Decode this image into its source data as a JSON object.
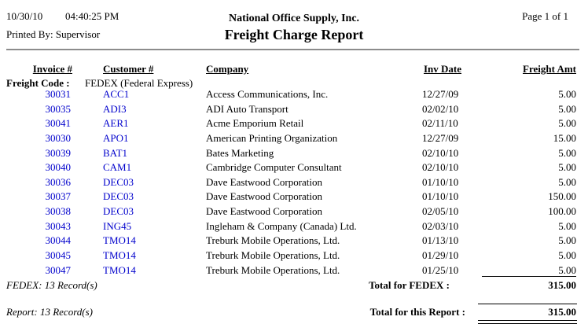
{
  "header": {
    "print_date": "10/30/10",
    "print_time": "04:40:25 PM",
    "printed_by": "Printed By: Supervisor",
    "company_name": "National Office Supply, Inc.",
    "report_title": "Freight Charge Report",
    "page_info": "Page 1 of 1"
  },
  "table": {
    "headers": {
      "invoice": "Invoice #",
      "customer": "Customer #",
      "company": "Company",
      "inv_date": "Inv Date",
      "freight_amt": "Freight Amt"
    },
    "group": {
      "label": "Freight Code :",
      "value": "FEDEX (Federal Express)"
    },
    "rows": [
      {
        "invoice": "30031",
        "customer": "ACC1",
        "company": "Access Communications, Inc.",
        "inv_date": "12/27/09",
        "freight_amt": "5.00"
      },
      {
        "invoice": "30035",
        "customer": "ADI3",
        "company": "ADI Auto Transport",
        "inv_date": "02/02/10",
        "freight_amt": "5.00"
      },
      {
        "invoice": "30041",
        "customer": "AER1",
        "company": "Acme Emporium Retail",
        "inv_date": "02/11/10",
        "freight_amt": "5.00"
      },
      {
        "invoice": "30030",
        "customer": "APO1",
        "company": "American Printing Organization",
        "inv_date": "12/27/09",
        "freight_amt": "15.00"
      },
      {
        "invoice": "30039",
        "customer": "BAT1",
        "company": "Bates Marketing",
        "inv_date": "02/10/10",
        "freight_amt": "5.00"
      },
      {
        "invoice": "30040",
        "customer": "CAM1",
        "company": "Cambridge Computer Consultant",
        "inv_date": "02/10/10",
        "freight_amt": "5.00"
      },
      {
        "invoice": "30036",
        "customer": "DEC03",
        "company": "Dave Eastwood Corporation",
        "inv_date": "01/10/10",
        "freight_amt": "5.00"
      },
      {
        "invoice": "30037",
        "customer": "DEC03",
        "company": "Dave Eastwood Corporation",
        "inv_date": "01/10/10",
        "freight_amt": "150.00"
      },
      {
        "invoice": "30038",
        "customer": "DEC03",
        "company": "Dave Eastwood Corporation",
        "inv_date": "02/05/10",
        "freight_amt": "100.00"
      },
      {
        "invoice": "30043",
        "customer": "ING45",
        "company": "Ingleham & Company (Canada) Ltd.",
        "inv_date": "02/03/10",
        "freight_amt": "5.00"
      },
      {
        "invoice": "30044",
        "customer": "TMO14",
        "company": "Treburk Mobile Operations, Ltd.",
        "inv_date": "01/13/10",
        "freight_amt": "5.00"
      },
      {
        "invoice": "30045",
        "customer": "TMO14",
        "company": "Treburk Mobile Operations, Ltd.",
        "inv_date": "01/29/10",
        "freight_amt": "5.00"
      },
      {
        "invoice": "30047",
        "customer": "TMO14",
        "company": "Treburk Mobile Operations, Ltd.",
        "inv_date": "01/25/10",
        "freight_amt": "5.00"
      }
    ]
  },
  "summary": {
    "group_count": "FEDEX: 13 Record(s)",
    "group_total_label": "Total for FEDEX :",
    "group_total": "315.00",
    "report_count": "Report: 13 Record(s)",
    "report_total_label": "Total for this Report :",
    "report_total": "315.00"
  },
  "colors": {
    "link_blue": "#0000CC",
    "rule_gray": "#8C8C8C"
  }
}
